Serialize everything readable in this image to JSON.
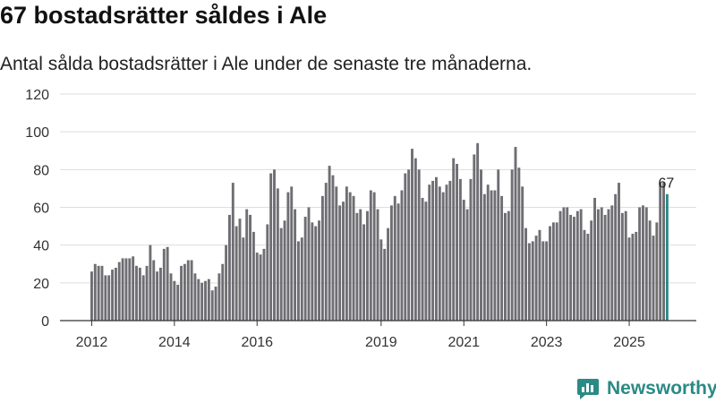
{
  "header": {
    "title": "67 bostadsrätter såldes i Ale",
    "subtitle": "Antal sålda bostadsrätter i Ale under de senaste tre månaderna."
  },
  "brand": {
    "name": "Newsworthy"
  },
  "colors": {
    "bar": "#6e6e73",
    "highlight": "#2a8a86",
    "grid": "#dddddd",
    "axis": "#333333",
    "text": "#333333"
  },
  "chart_data": {
    "type": "bar",
    "title": "67 bostadsrätter såldes i Ale",
    "subtitle": "Antal sålda bostadsrätter i Ale under de senaste tre månaderna.",
    "xlabel": "",
    "ylabel": "",
    "ylim": [
      0,
      120
    ],
    "yticks": [
      "0",
      "20",
      "40",
      "60",
      "80",
      "100",
      "120"
    ],
    "xticks": [
      {
        "label": "2012",
        "index": 0
      },
      {
        "label": "2014",
        "index": 24
      },
      {
        "label": "2016",
        "index": 48
      },
      {
        "label": "2019",
        "index": 84
      },
      {
        "label": "2021",
        "index": 108
      },
      {
        "label": "2023",
        "index": 132
      },
      {
        "label": "2025",
        "index": 156
      }
    ],
    "start": "2012-01",
    "highlight_index": 167,
    "highlight_label": "67",
    "values": [
      26,
      30,
      29,
      29,
      24,
      24,
      27,
      28,
      31,
      33,
      33,
      33,
      34,
      29,
      28,
      24,
      29,
      40,
      32,
      26,
      28,
      38,
      39,
      25,
      21,
      19,
      29,
      30,
      32,
      32,
      25,
      22,
      20,
      21,
      22,
      16,
      18,
      25,
      30,
      40,
      56,
      73,
      50,
      54,
      44,
      59,
      56,
      47,
      36,
      35,
      38,
      51,
      78,
      80,
      70,
      49,
      53,
      68,
      71,
      59,
      42,
      44,
      55,
      60,
      52,
      50,
      53,
      66,
      73,
      82,
      77,
      71,
      61,
      63,
      71,
      68,
      66,
      57,
      59,
      51,
      58,
      69,
      68,
      59,
      43,
      38,
      49,
      61,
      66,
      62,
      69,
      78,
      80,
      91,
      86,
      80,
      65,
      63,
      72,
      74,
      76,
      71,
      68,
      72,
      74,
      86,
      83,
      75,
      64,
      59,
      75,
      88,
      94,
      80,
      67,
      72,
      69,
      69,
      80,
      66,
      57,
      58,
      80,
      92,
      81,
      71,
      49,
      41,
      42,
      45,
      48,
      42,
      42,
      50,
      52,
      52,
      58,
      60,
      60,
      56,
      55,
      58,
      59,
      48,
      46,
      53,
      65,
      59,
      60,
      56,
      59,
      61,
      67,
      73,
      57,
      58,
      44,
      46,
      47,
      60,
      61,
      60,
      53,
      45,
      52,
      73,
      73,
      67
    ]
  }
}
